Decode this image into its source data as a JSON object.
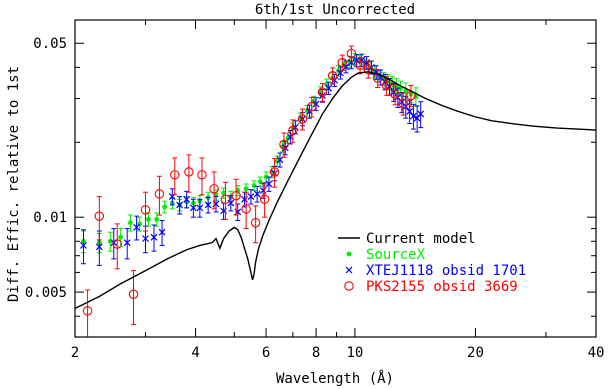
{
  "chart_data": {
    "type": "scatter",
    "title": "6th/1st Uncorrected",
    "xlabel": "Wavelength (Å)",
    "ylabel": "Diff. Effic. relative to 1st",
    "x_scale": "log",
    "y_scale": "log",
    "xlim": [
      2,
      40
    ],
    "ylim": [
      0.0033,
      0.062
    ],
    "x_ticks": [
      {
        "value": 2,
        "label": "2"
      },
      {
        "value": 4,
        "label": "4"
      },
      {
        "value": 6,
        "label": "6"
      },
      {
        "value": 8,
        "label": "8"
      },
      {
        "value": 10,
        "label": "10"
      },
      {
        "value": 20,
        "label": "20"
      },
      {
        "value": 40,
        "label": "40"
      }
    ],
    "x_minor_ticks": [
      3,
      5,
      7,
      9,
      30
    ],
    "y_ticks": [
      {
        "value": 0.005,
        "label": "0.005"
      },
      {
        "value": 0.01,
        "label": "0.01"
      },
      {
        "value": 0.05,
        "label": "0.05"
      }
    ],
    "y_minor_ticks": [
      0.004,
      0.006,
      0.007,
      0.008,
      0.009,
      0.02,
      0.03,
      0.04
    ],
    "legend_position": "bottom-right",
    "series": [
      {
        "name": "Current model",
        "style": "line",
        "color": "#000000",
        "x": [
          2.0,
          2.3,
          2.6,
          3.0,
          3.4,
          3.8,
          4.1,
          4.4,
          4.5,
          4.6,
          4.7,
          4.85,
          5.0,
          5.1,
          5.2,
          5.3,
          5.4,
          5.5,
          5.55,
          5.6,
          5.65,
          5.75,
          5.9,
          6.1,
          6.4,
          6.8,
          7.3,
          7.8,
          8.3,
          8.8,
          9.3,
          9.8,
          10.2,
          10.8,
          11.5,
          12.3,
          13.0,
          14.0,
          15.0,
          16.5,
          18.0,
          20.0,
          22.0,
          25.0,
          28.0,
          32.0,
          36.0,
          40.0
        ],
        "y": [
          0.0043,
          0.0048,
          0.0054,
          0.0061,
          0.0068,
          0.0074,
          0.0077,
          0.0079,
          0.0082,
          0.0075,
          0.0082,
          0.0088,
          0.0091,
          0.0089,
          0.0083,
          0.0075,
          0.0068,
          0.006,
          0.0056,
          0.0059,
          0.0066,
          0.0075,
          0.0085,
          0.0097,
          0.0115,
          0.014,
          0.0175,
          0.0215,
          0.026,
          0.03,
          0.0337,
          0.0365,
          0.038,
          0.0384,
          0.0375,
          0.0355,
          0.0337,
          0.0318,
          0.03,
          0.0281,
          0.0267,
          0.0253,
          0.0244,
          0.0237,
          0.0232,
          0.0228,
          0.0226,
          0.0224
        ]
      },
      {
        "name": "SourceX",
        "style": "dot",
        "color": "#00ee00",
        "x": [
          2.1,
          2.3,
          2.45,
          2.6,
          2.75,
          2.9,
          3.05,
          3.2,
          3.35,
          3.5,
          3.65,
          3.8,
          3.95,
          4.1,
          4.3,
          4.5,
          4.7,
          4.9,
          5.1,
          5.35,
          5.6,
          5.8,
          6.0,
          6.2,
          6.4,
          6.6,
          6.8,
          7.0,
          7.3,
          7.6,
          7.9,
          8.2,
          8.5,
          8.8,
          9.1,
          9.4,
          9.7,
          10.0,
          10.3,
          10.6,
          10.9,
          11.2,
          11.5,
          11.8,
          12.1,
          12.4,
          12.7,
          13.0,
          13.4,
          13.8,
          14.2
        ],
        "y": [
          0.008,
          0.0079,
          0.008,
          0.0083,
          0.0095,
          0.0094,
          0.0098,
          0.0098,
          0.011,
          0.0114,
          0.0112,
          0.0115,
          0.0114,
          0.0116,
          0.012,
          0.0123,
          0.0125,
          0.0121,
          0.0128,
          0.013,
          0.0134,
          0.0139,
          0.0145,
          0.0152,
          0.0168,
          0.0192,
          0.0208,
          0.0228,
          0.025,
          0.0268,
          0.0292,
          0.0318,
          0.0342,
          0.0363,
          0.0388,
          0.041,
          0.0422,
          0.0432,
          0.0425,
          0.0412,
          0.0398,
          0.0384,
          0.037,
          0.036,
          0.0352,
          0.0345,
          0.0337,
          0.0329,
          0.0322,
          0.0313,
          0.0305
        ],
        "err": [
          0.0008,
          0.0007,
          0.0007,
          0.0007,
          0.0007,
          0.0006,
          0.0006,
          0.0006,
          0.0006,
          0.0006,
          0.0006,
          0.0006,
          0.0006,
          0.0006,
          0.0006,
          0.0006,
          0.0006,
          0.0006,
          0.0006,
          0.0006,
          0.0006,
          0.0006,
          0.0007,
          0.0008,
          0.0008,
          0.0009,
          0.001,
          0.0011,
          0.0012,
          0.0013,
          0.0014,
          0.0016,
          0.0017,
          0.0018,
          0.0019,
          0.002,
          0.0021,
          0.0022,
          0.0022,
          0.0021,
          0.0021,
          0.0021,
          0.0021,
          0.0021,
          0.0022,
          0.0022,
          0.0023,
          0.0023,
          0.0024,
          0.0025,
          0.0026
        ]
      },
      {
        "name": "XTEJ1118 obsid 1701",
        "style": "x",
        "color": "#0000ff",
        "x": [
          2.1,
          2.3,
          2.5,
          2.7,
          2.85,
          3.0,
          3.15,
          3.3,
          3.5,
          3.65,
          3.8,
          3.95,
          4.1,
          4.3,
          4.5,
          4.7,
          4.9,
          5.1,
          5.3,
          5.5,
          5.7,
          5.9,
          6.1,
          6.3,
          6.5,
          6.7,
          6.9,
          7.1,
          7.4,
          7.7,
          8.0,
          8.3,
          8.6,
          8.9,
          9.2,
          9.5,
          9.8,
          10.1,
          10.4,
          10.7,
          11.0,
          11.3,
          11.6,
          11.9,
          12.2,
          12.5,
          12.8,
          13.1,
          13.4,
          13.7,
          14.0,
          14.3,
          14.6
        ],
        "y": [
          0.0077,
          0.0076,
          0.0079,
          0.0079,
          0.0091,
          0.0082,
          0.0083,
          0.0087,
          0.0121,
          0.0112,
          0.0118,
          0.0109,
          0.0109,
          0.0112,
          0.0113,
          0.0106,
          0.0114,
          0.0105,
          0.0118,
          0.0121,
          0.0124,
          0.0128,
          0.0136,
          0.015,
          0.017,
          0.019,
          0.021,
          0.023,
          0.0248,
          0.0266,
          0.0285,
          0.0308,
          0.033,
          0.0355,
          0.038,
          0.0402,
          0.0418,
          0.0426,
          0.0428,
          0.0418,
          0.04,
          0.0382,
          0.0365,
          0.035,
          0.0335,
          0.0318,
          0.0303,
          0.029,
          0.0278,
          0.0266,
          0.0255,
          0.025,
          0.026
        ],
        "err": [
          0.0012,
          0.0012,
          0.0011,
          0.0011,
          0.001,
          0.001,
          0.001,
          0.001,
          0.0009,
          0.0009,
          0.0009,
          0.0009,
          0.0009,
          0.0008,
          0.0008,
          0.0008,
          0.0008,
          0.0008,
          0.0008,
          0.0008,
          0.0009,
          0.0009,
          0.0009,
          0.001,
          0.0011,
          0.0012,
          0.0013,
          0.0014,
          0.0015,
          0.0016,
          0.0017,
          0.0018,
          0.0019,
          0.002,
          0.0021,
          0.0022,
          0.0023,
          0.0024,
          0.0024,
          0.0024,
          0.0024,
          0.0024,
          0.0025,
          0.0025,
          0.0026,
          0.0026,
          0.0027,
          0.0027,
          0.0028,
          0.0028,
          0.0029,
          0.003,
          0.0031
        ]
      },
      {
        "name": "PKS2155 obsid 3669",
        "style": "circle",
        "color": "#ff0000",
        "x": [
          2.15,
          2.3,
          2.55,
          2.8,
          3.0,
          3.25,
          3.55,
          3.85,
          4.15,
          4.45,
          4.75,
          5.05,
          5.35,
          5.65,
          5.95,
          6.3,
          6.65,
          7.0,
          7.4,
          7.8,
          8.3,
          8.8,
          9.3,
          9.8,
          10.3,
          10.8,
          11.4,
          12.0,
          12.6,
          13.2,
          13.8
        ],
        "y": [
          0.0042,
          0.0101,
          0.0078,
          0.0049,
          0.0107,
          0.0124,
          0.0148,
          0.0152,
          0.0148,
          0.013,
          0.0118,
          0.0122,
          0.0108,
          0.0095,
          0.0118,
          0.0152,
          0.0196,
          0.0223,
          0.0248,
          0.0278,
          0.0318,
          0.037,
          0.0418,
          0.0455,
          0.0408,
          0.0392,
          0.0362,
          0.0338,
          0.0312,
          0.0286,
          0.0308
        ],
        "err": [
          0.0009,
          0.002,
          0.0016,
          0.0012,
          0.0019,
          0.0022,
          0.0025,
          0.0026,
          0.0025,
          0.0022,
          0.002,
          0.002,
          0.0018,
          0.0016,
          0.0018,
          0.002,
          0.0022,
          0.0023,
          0.0024,
          0.0025,
          0.0026,
          0.0028,
          0.003,
          0.0032,
          0.0031,
          0.003,
          0.003,
          0.0029,
          0.0029,
          0.0029,
          0.003
        ]
      }
    ]
  }
}
